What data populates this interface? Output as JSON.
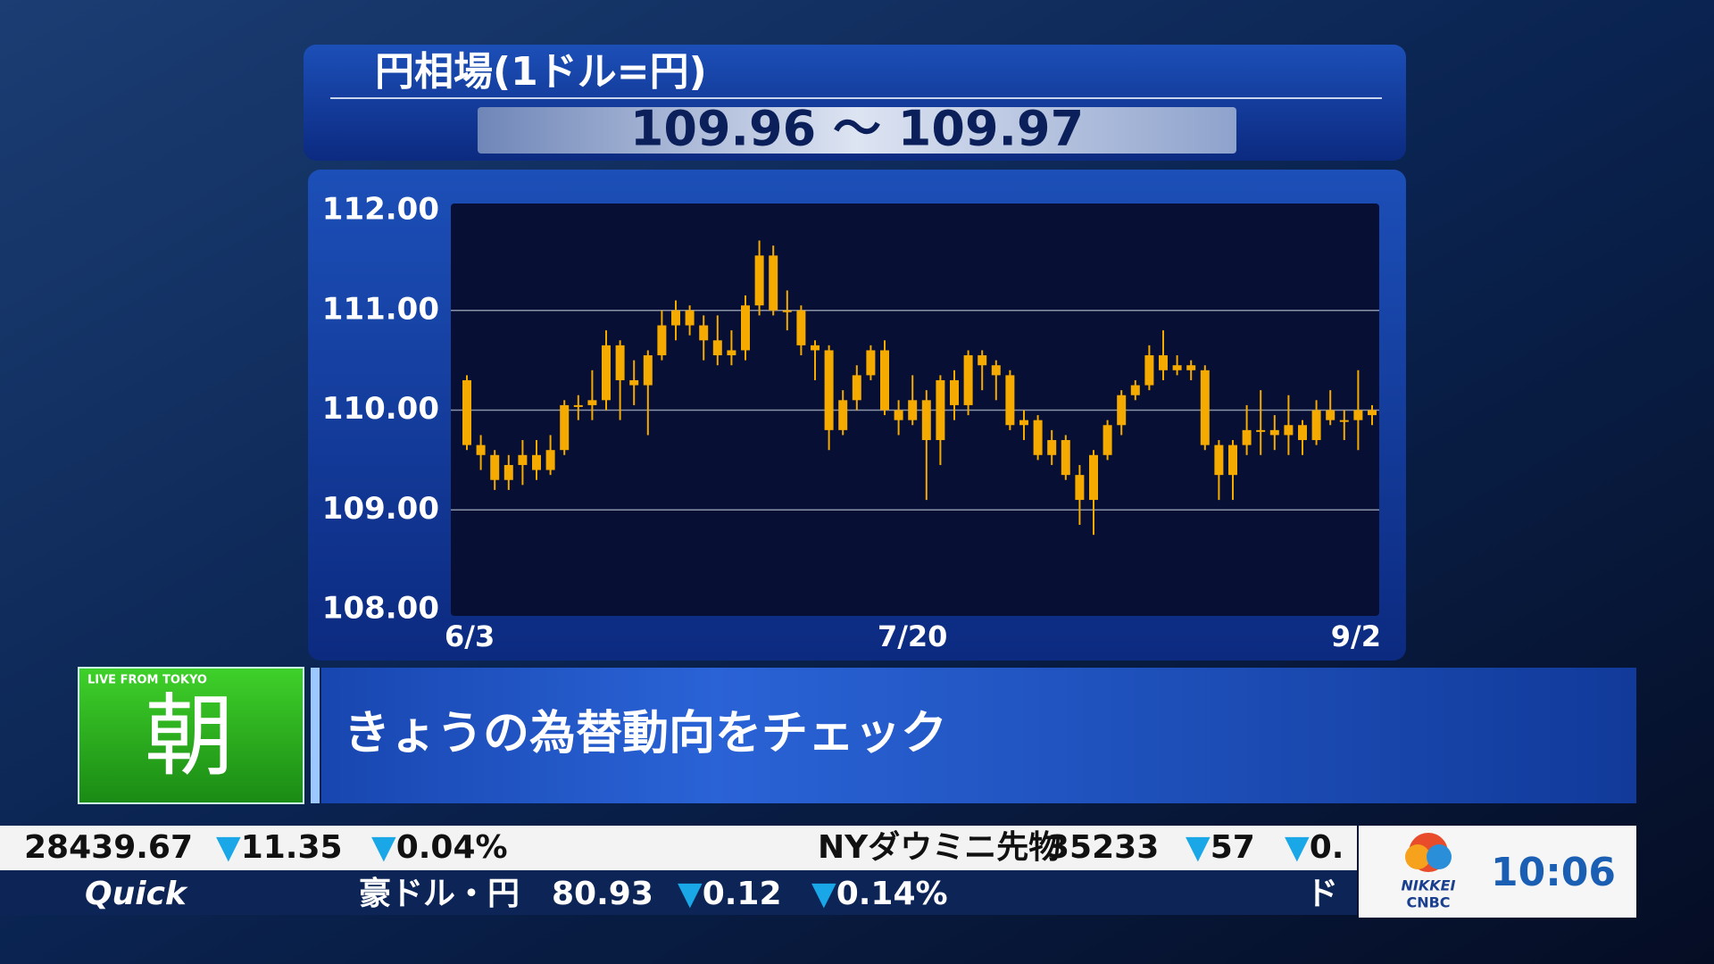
{
  "chart_data": {
    "type": "candlestick",
    "title": "円相場(1ドル=円)",
    "subtitle": "109.96 〜 109.97",
    "categories": [
      "6/3",
      null,
      null,
      null,
      null,
      null,
      null,
      null,
      null,
      null,
      null,
      null,
      null,
      null,
      null,
      null,
      null,
      null,
      null,
      null,
      null,
      null,
      null,
      null,
      null,
      null,
      null,
      null,
      null,
      null,
      null,
      null,
      "7/20",
      null,
      null,
      null,
      null,
      null,
      null,
      null,
      null,
      null,
      null,
      null,
      null,
      null,
      null,
      null,
      null,
      null,
      null,
      null,
      null,
      null,
      null,
      null,
      null,
      null,
      null,
      null,
      null,
      null,
      null,
      null,
      null,
      "9/2"
    ],
    "open": [
      110.3,
      109.65,
      109.55,
      109.3,
      109.45,
      109.55,
      109.4,
      109.6,
      110.05,
      110.05,
      110.1,
      110.65,
      110.3,
      110.25,
      110.55,
      110.85,
      111.0,
      110.85,
      110.7,
      110.55,
      110.6,
      111.05,
      111.55,
      111.0,
      111.0,
      110.65,
      110.6,
      109.8,
      110.1,
      110.35,
      110.6,
      110.0,
      109.9,
      110.1,
      109.7,
      110.3,
      110.05,
      110.55,
      110.45,
      110.35,
      109.85,
      109.9,
      109.55,
      109.7,
      109.35,
      109.1,
      109.55,
      109.85,
      110.15,
      110.25,
      110.55,
      110.4,
      110.45,
      110.4,
      109.65,
      109.35,
      109.65,
      109.8,
      109.8,
      109.75,
      109.85,
      109.7,
      110.0,
      109.9,
      109.9,
      110.0
    ],
    "high": [
      110.35,
      109.75,
      109.6,
      109.55,
      109.7,
      109.7,
      109.75,
      110.1,
      110.15,
      110.4,
      110.8,
      110.7,
      110.5,
      110.6,
      111.0,
      111.1,
      111.05,
      110.95,
      110.95,
      110.8,
      111.15,
      111.7,
      111.65,
      111.2,
      111.05,
      110.7,
      110.65,
      110.2,
      110.45,
      110.65,
      110.7,
      110.1,
      110.35,
      110.2,
      110.35,
      110.4,
      110.6,
      110.6,
      110.5,
      110.4,
      110.0,
      109.95,
      109.8,
      109.75,
      109.45,
      109.6,
      109.9,
      110.2,
      110.3,
      110.65,
      110.8,
      110.55,
      110.5,
      110.45,
      109.7,
      109.7,
      110.05,
      110.2,
      109.95,
      110.15,
      109.9,
      110.1,
      110.2,
      110.0,
      110.4,
      110.05
    ],
    "low": [
      109.6,
      109.4,
      109.2,
      109.2,
      109.25,
      109.3,
      109.35,
      109.55,
      109.9,
      109.9,
      110.0,
      109.9,
      110.05,
      109.75,
      110.5,
      110.7,
      110.75,
      110.5,
      110.45,
      110.45,
      110.5,
      110.95,
      110.95,
      110.8,
      110.55,
      110.3,
      109.6,
      109.75,
      110.0,
      110.3,
      109.95,
      109.75,
      109.85,
      109.1,
      109.45,
      109.9,
      109.95,
      110.2,
      110.1,
      109.8,
      109.7,
      109.5,
      109.45,
      109.3,
      108.85,
      108.75,
      109.5,
      109.75,
      110.1,
      110.2,
      110.3,
      110.35,
      110.3,
      109.6,
      109.1,
      109.1,
      109.55,
      109.55,
      109.6,
      109.55,
      109.55,
      109.65,
      109.85,
      109.7,
      109.6,
      109.85
    ],
    "close": [
      109.65,
      109.55,
      109.3,
      109.45,
      109.55,
      109.4,
      109.6,
      110.05,
      110.05,
      110.1,
      110.65,
      110.3,
      110.25,
      110.55,
      110.85,
      111.0,
      110.85,
      110.7,
      110.55,
      110.6,
      111.05,
      111.55,
      111.0,
      111.0,
      110.65,
      110.6,
      109.8,
      110.1,
      110.35,
      110.6,
      110.0,
      109.9,
      110.1,
      109.7,
      110.3,
      110.05,
      110.55,
      110.45,
      110.35,
      109.85,
      109.9,
      109.55,
      109.7,
      109.35,
      109.1,
      109.55,
      109.85,
      110.15,
      110.25,
      110.55,
      110.4,
      110.45,
      110.4,
      109.65,
      109.35,
      109.65,
      109.8,
      109.8,
      109.75,
      109.85,
      109.7,
      110.0,
      109.9,
      109.9,
      110.0,
      109.95
    ],
    "color": "#f5aa00",
    "ylim": [
      108,
      112
    ],
    "yticks": [
      {
        "value": 108,
        "label": "108.00"
      },
      {
        "value": 109,
        "label": "109.00"
      },
      {
        "value": 110,
        "label": "110.00"
      },
      {
        "value": 111,
        "label": "111.00"
      },
      {
        "value": 112,
        "label": "112.00"
      }
    ],
    "grid": true
  },
  "caption": {
    "badge": "LIVE FROM TOKYO",
    "program": "朝",
    "text": "きょうの為替動向をチェック"
  },
  "ticker": {
    "row1": [
      {
        "text": "28439.67"
      },
      {
        "arrow": "▼",
        "text": "11.35"
      },
      {
        "arrow": "▼",
        "text": "0.04%"
      },
      {
        "text": "NYダウミニ先物"
      },
      {
        "text": "35233"
      },
      {
        "arrow": "▼",
        "text": "57"
      },
      {
        "arrow": "▼",
        "text": "0."
      }
    ],
    "row2": [
      {
        "text": "Quick"
      },
      {
        "text": "豪ドル・円"
      },
      {
        "text": "80.93"
      },
      {
        "arrow": "▼",
        "text": "0.12"
      },
      {
        "arrow": "▼",
        "text": "0.14%"
      },
      {
        "text": "ド"
      }
    ]
  },
  "logo": {
    "line1": "NIKKEI",
    "line2": "CNBC"
  },
  "clock": "10:06"
}
